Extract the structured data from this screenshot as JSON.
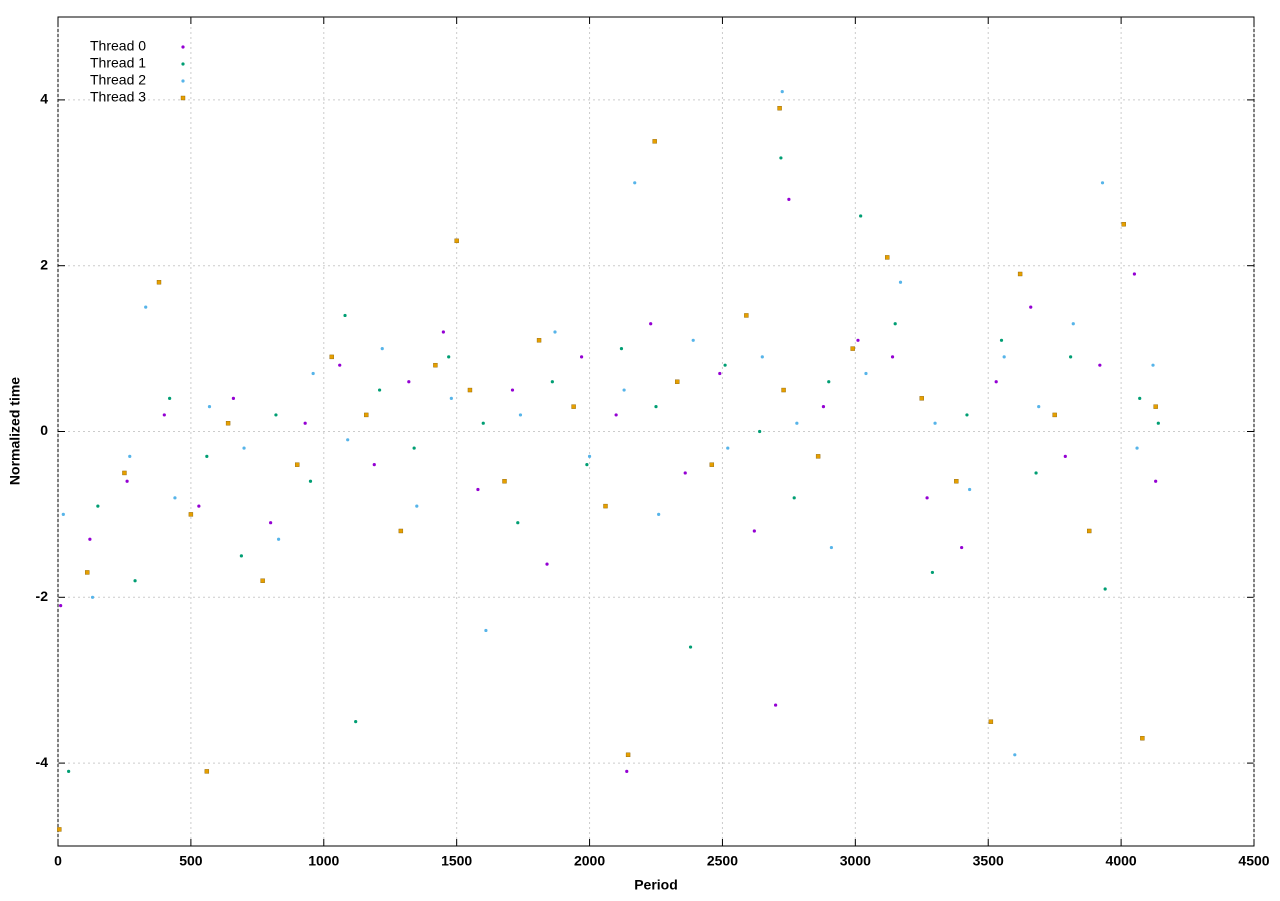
{
  "chart_data": {
    "type": "scatter",
    "xlabel": "Period",
    "ylabel": "Normalized time",
    "xlim": [
      0,
      4500
    ],
    "xticks": [
      0,
      500,
      1000,
      1500,
      2000,
      2500,
      3000,
      3500,
      4000,
      4500
    ],
    "ylim": [
      -5,
      5
    ],
    "yticks": [
      -4,
      -2,
      0,
      2,
      4
    ],
    "grid": true,
    "legend": "top-left",
    "series": [
      {
        "name": "Thread 0",
        "color": "#9400d3",
        "marker": "dot",
        "x": [
          10,
          120,
          260,
          400,
          530,
          660,
          800,
          930,
          1060,
          1190,
          1320,
          1450,
          1580,
          1710,
          1840,
          1970,
          2100,
          2140,
          2230,
          2360,
          2490,
          2620,
          2700,
          2750,
          2880,
          3010,
          3140,
          3270,
          3400,
          3530,
          3660,
          3790,
          3920,
          4050,
          4130
        ],
        "values": [
          -2.1,
          -1.3,
          -0.6,
          0.2,
          -0.9,
          0.4,
          -1.1,
          0.1,
          0.8,
          -0.4,
          0.6,
          1.2,
          -0.7,
          0.5,
          -1.6,
          0.9,
          0.2,
          -4.1,
          1.3,
          -0.5,
          0.7,
          -1.2,
          -3.3,
          2.8,
          0.3,
          1.1,
          0.9,
          -0.8,
          -1.4,
          0.6,
          1.5,
          -0.3,
          0.8,
          1.9,
          -0.6
        ]
      },
      {
        "name": "Thread 1",
        "color": "#009e73",
        "marker": "dot",
        "x": [
          40,
          150,
          290,
          420,
          560,
          690,
          820,
          950,
          1080,
          1120,
          1210,
          1340,
          1470,
          1600,
          1730,
          1860,
          1990,
          2120,
          2250,
          2380,
          2510,
          2640,
          2720,
          2770,
          2900,
          3020,
          3150,
          3290,
          3420,
          3550,
          3680,
          3810,
          3940,
          4070,
          4140
        ],
        "values": [
          -4.1,
          -0.9,
          -1.8,
          0.4,
          -0.3,
          -1.5,
          0.2,
          -0.6,
          1.4,
          -3.5,
          0.5,
          -0.2,
          0.9,
          0.1,
          -1.1,
          0.6,
          -0.4,
          1.0,
          0.3,
          -2.6,
          0.8,
          0.0,
          3.3,
          -0.8,
          0.6,
          2.6,
          1.3,
          -1.7,
          0.2,
          1.1,
          -0.5,
          0.9,
          -1.9,
          0.4,
          0.1
        ]
      },
      {
        "name": "Thread 2",
        "color": "#56b4e9",
        "marker": "dot",
        "x": [
          20,
          130,
          270,
          330,
          440,
          570,
          700,
          830,
          960,
          1090,
          1220,
          1350,
          1480,
          1610,
          1740,
          1870,
          2000,
          2130,
          2170,
          2260,
          2390,
          2520,
          2650,
          2725,
          2780,
          2910,
          3040,
          3170,
          3300,
          3430,
          3560,
          3600,
          3690,
          3820,
          3930,
          4060,
          4120
        ],
        "values": [
          -1.0,
          -2.0,
          -0.3,
          1.5,
          -0.8,
          0.3,
          -0.2,
          -1.3,
          0.7,
          -0.1,
          1.0,
          -0.9,
          0.4,
          -2.4,
          0.2,
          1.2,
          -0.3,
          0.5,
          3.0,
          -1.0,
          1.1,
          -0.2,
          0.9,
          4.1,
          0.1,
          -1.4,
          0.7,
          1.8,
          0.1,
          -0.7,
          0.9,
          -3.9,
          0.3,
          1.3,
          3.0,
          -0.2,
          0.8
        ]
      },
      {
        "name": "Thread 3",
        "color": "#e69f00",
        "marker": "square",
        "x": [
          5,
          110,
          250,
          380,
          500,
          560,
          640,
          770,
          900,
          1030,
          1160,
          1290,
          1420,
          1500,
          1550,
          1680,
          1810,
          1940,
          2060,
          2145,
          2245,
          2330,
          2460,
          2590,
          2715,
          2730,
          2860,
          2990,
          3120,
          3250,
          3380,
          3510,
          3620,
          3750,
          3880,
          4010,
          4080,
          4130
        ],
        "values": [
          -4.8,
          -1.7,
          -0.5,
          1.8,
          -1.0,
          -4.1,
          0.1,
          -1.8,
          -0.4,
          0.9,
          0.2,
          -1.2,
          0.8,
          2.3,
          0.5,
          -0.6,
          1.1,
          0.3,
          -0.9,
          -3.9,
          3.5,
          0.6,
          -0.4,
          1.4,
          3.9,
          0.5,
          -0.3,
          1.0,
          2.1,
          0.4,
          -0.6,
          -3.5,
          1.9,
          0.2,
          -1.2,
          2.5,
          -3.7,
          0.3
        ]
      }
    ]
  }
}
